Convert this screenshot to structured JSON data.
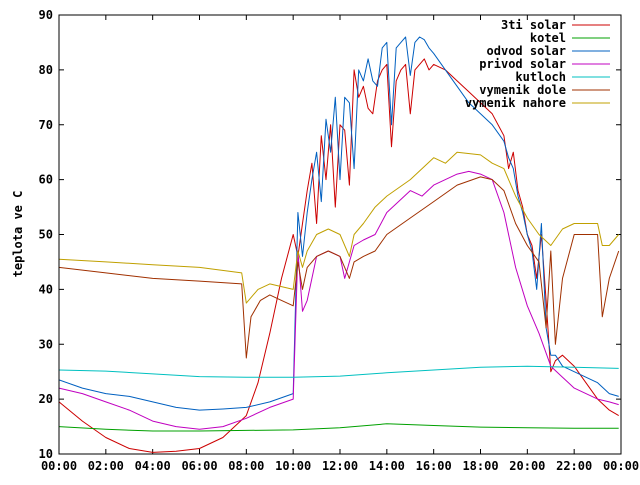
{
  "chart_data": {
    "type": "line",
    "title": "",
    "xlabel": "",
    "ylabel": "teplota ve C",
    "x_ticks": [
      "00:00",
      "02:00",
      "04:00",
      "06:00",
      "08:00",
      "10:00",
      "12:00",
      "14:00",
      "16:00",
      "18:00",
      "20:00",
      "22:00",
      "00:00"
    ],
    "y_ticks": [
      10,
      20,
      30,
      40,
      50,
      60,
      70,
      80,
      90
    ],
    "xlim": [
      0,
      24
    ],
    "ylim": [
      10,
      90
    ],
    "grid": false,
    "legend_position": "top-right",
    "series": [
      {
        "name": "3ti solar",
        "color": "#cc0000",
        "x": [
          0,
          1,
          2,
          3,
          4,
          5,
          6,
          7,
          8,
          8.5,
          9,
          9.5,
          10,
          10.2,
          10.4,
          10.6,
          10.8,
          11,
          11.2,
          11.4,
          11.6,
          11.8,
          12,
          12.2,
          12.4,
          12.6,
          12.8,
          13,
          13.2,
          13.4,
          13.6,
          13.8,
          14,
          14.2,
          14.4,
          14.6,
          14.8,
          15,
          15.2,
          15.4,
          15.6,
          15.8,
          16,
          16.5,
          17,
          17.5,
          18,
          18.5,
          19,
          19.2,
          19.4,
          19.6,
          19.8,
          20,
          20.2,
          20.4,
          20.6,
          20.8,
          21,
          21.2,
          21.5,
          22,
          22.5,
          23,
          23.5,
          23.9
        ],
        "y": [
          19.5,
          16,
          13,
          11,
          10.3,
          10.5,
          11,
          13,
          17,
          23,
          32,
          42,
          50,
          46,
          52,
          58,
          63,
          52,
          68,
          60,
          70,
          55,
          70,
          69,
          59,
          80,
          75,
          77,
          73,
          72,
          78,
          80,
          81,
          66,
          78,
          80,
          81,
          72,
          80,
          81,
          82,
          80,
          81,
          80,
          78,
          76,
          74,
          72,
          68,
          62,
          65,
          58,
          55,
          50,
          48,
          42,
          50,
          38,
          25,
          27,
          28,
          26,
          23,
          20,
          18,
          17
        ]
      },
      {
        "name": "kotel",
        "color": "#00a000",
        "x": [
          0,
          2,
          4,
          6,
          8,
          10,
          12,
          14,
          16,
          18,
          20,
          22,
          23.9
        ],
        "y": [
          15,
          14.5,
          14.2,
          14.2,
          14.3,
          14.4,
          14.8,
          15.5,
          15.2,
          14.9,
          14.8,
          14.7,
          14.7
        ]
      },
      {
        "name": "odvod solar",
        "color": "#0060c0",
        "x": [
          0,
          1,
          2,
          3,
          4,
          5,
          6,
          7,
          8,
          9,
          10,
          10.2,
          10.4,
          10.6,
          10.8,
          11,
          11.2,
          11.4,
          11.6,
          11.8,
          12,
          12.2,
          12.4,
          12.6,
          12.8,
          13,
          13.2,
          13.4,
          13.6,
          13.8,
          14,
          14.2,
          14.4,
          14.6,
          14.8,
          15,
          15.2,
          15.4,
          15.6,
          15.8,
          16,
          16.5,
          17,
          17.5,
          18,
          18.5,
          19,
          19.2,
          19.4,
          19.6,
          19.8,
          20,
          20.2,
          20.4,
          20.6,
          20.8,
          21,
          21.2,
          21.5,
          22,
          22.5,
          23,
          23.5,
          23.9
        ],
        "y": [
          23.5,
          22,
          21,
          20.5,
          19.5,
          18.5,
          18,
          18.2,
          18.5,
          19.5,
          21,
          54,
          46,
          54,
          60,
          65,
          56,
          71,
          65,
          75,
          60,
          75,
          74,
          62,
          80,
          78,
          82,
          78,
          77,
          84,
          85,
          70,
          84,
          85,
          86,
          79,
          85,
          86,
          85.5,
          84,
          83,
          80,
          77,
          74,
          72,
          70,
          67,
          64,
          62,
          57,
          54,
          50,
          47,
          40,
          52,
          33,
          28,
          28,
          26,
          25,
          24,
          23,
          21,
          20.5
        ]
      },
      {
        "name": "privod solar",
        "color": "#c000c0",
        "x": [
          0,
          1,
          2,
          3,
          4,
          5,
          6,
          7,
          8,
          9,
          10,
          10.2,
          10.4,
          10.6,
          10.8,
          11,
          11.5,
          12,
          12.2,
          12.4,
          12.6,
          13,
          13.5,
          14,
          14.5,
          15,
          15.5,
          16,
          16.5,
          17,
          17.5,
          18,
          18.5,
          19,
          19.5,
          20,
          20.5,
          21,
          21.5,
          22,
          22.5,
          23,
          23.5,
          23.9
        ],
        "y": [
          22,
          21,
          19.5,
          18,
          16,
          15,
          14.5,
          15,
          16.5,
          18.5,
          20,
          47,
          36,
          38,
          42,
          46,
          47,
          46,
          42,
          45,
          48,
          49,
          50,
          54,
          56,
          58,
          57,
          59,
          60,
          61,
          61.5,
          61,
          60,
          54,
          44,
          37,
          32,
          26,
          24,
          22,
          21,
          20,
          19.5,
          19
        ]
      },
      {
        "name": "kutloch",
        "color": "#00c0c0",
        "x": [
          0,
          2,
          4,
          6,
          8,
          10,
          12,
          14,
          16,
          18,
          20,
          22,
          23.9
        ],
        "y": [
          25.3,
          25.1,
          24.6,
          24.1,
          24,
          24,
          24.2,
          24.8,
          25.3,
          25.8,
          26,
          25.8,
          25.6
        ]
      },
      {
        "name": "vymenik dole",
        "color": "#a03000",
        "x": [
          0,
          2,
          4,
          6,
          7.8,
          8,
          8.2,
          8.6,
          9,
          9.5,
          10,
          10.2,
          10.4,
          10.6,
          11,
          11.5,
          12,
          12.4,
          12.6,
          13,
          13.5,
          14,
          15,
          16,
          17,
          18,
          18.5,
          19,
          19.5,
          20,
          20.5,
          20.8,
          21,
          21.2,
          21.5,
          22,
          22.5,
          23,
          23.2,
          23.5,
          23.9
        ],
        "y": [
          44,
          43,
          42,
          41.5,
          41,
          27.5,
          35,
          38,
          39,
          38,
          37,
          45,
          40,
          44,
          46,
          47,
          46,
          42,
          45,
          46,
          47,
          50,
          53,
          56,
          59,
          60.5,
          60,
          58,
          52,
          48,
          45,
          33,
          47,
          30,
          42,
          50,
          50,
          50,
          35,
          42,
          47
        ]
      },
      {
        "name": "vymenik nahore",
        "color": "#c0a000",
        "x": [
          0,
          2,
          4,
          6,
          7.8,
          8,
          8.5,
          9,
          9.5,
          10,
          10.2,
          10.4,
          10.6,
          11,
          11.5,
          12,
          12.4,
          12.6,
          13,
          13.5,
          14,
          15,
          16,
          16.5,
          17,
          18,
          18.5,
          19,
          19.5,
          20,
          20.5,
          21,
          21.5,
          22,
          22.5,
          23,
          23.2,
          23.5,
          23.9
        ],
        "y": [
          45.5,
          45,
          44.5,
          44,
          43,
          37.5,
          40,
          41,
          40.5,
          40,
          47,
          44,
          47,
          50,
          51,
          50,
          46,
          50,
          52,
          55,
          57,
          60,
          64,
          63,
          65,
          64.5,
          63,
          62,
          57,
          53,
          50,
          48,
          51,
          52,
          52,
          52,
          48,
          48,
          50
        ]
      }
    ]
  }
}
